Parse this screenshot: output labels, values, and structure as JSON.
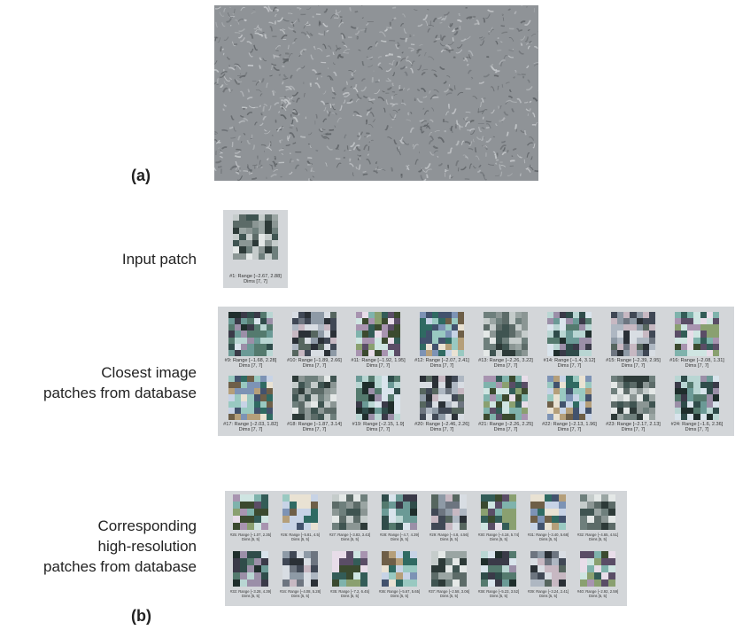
{
  "figure": {
    "label_a": "(a)",
    "label_b": "(b)",
    "input_label": "Input patch",
    "closest_label_line1": "Closest image",
    "closest_label_line2": "patches from database",
    "hr_label_line1": "Corresponding",
    "hr_label_line2": "high-resolution",
    "hr_label_line3": "patches from database",
    "input_patch": {
      "range": "#1: Range [−2.67, 2.88]",
      "dims": "Dims [7, 7]"
    },
    "closest_patches": [
      {
        "range": "#9: Range [−1.68, 2.28]",
        "dims": "Dims [7, 7]"
      },
      {
        "range": "#10: Range [−1.89, 2.66]",
        "dims": "Dims [7, 7]"
      },
      {
        "range": "#11: Range [−1.92, 1.95]",
        "dims": "Dims [7, 7]"
      },
      {
        "range": "#12: Range [−2.07, 2.41]",
        "dims": "Dims [7, 7]"
      },
      {
        "range": "#13: Range [−2.26, 3.22]",
        "dims": "Dims [7, 7]"
      },
      {
        "range": "#14: Range [−1.4, 3.12]",
        "dims": "Dims [7, 7]"
      },
      {
        "range": "#15: Range [−2.39, 2.95]",
        "dims": "Dims [7, 7]"
      },
      {
        "range": "#16: Range [−2.08, 1.31]",
        "dims": "Dims [7, 7]"
      },
      {
        "range": "#17: Range [−2.03, 1.82]",
        "dims": "Dims [7, 7]"
      },
      {
        "range": "#18: Range [−1.87, 3.14]",
        "dims": "Dims [7, 7]"
      },
      {
        "range": "#19: Range [−2.15, 1.9]",
        "dims": "Dims [7, 7]"
      },
      {
        "range": "#20: Range [−2.46, 2.26]",
        "dims": "Dims [7, 7]"
      },
      {
        "range": "#21: Range [−2.26, 2.25]",
        "dims": "Dims [7, 7]"
      },
      {
        "range": "#22: Range [−2.13, 1.96]",
        "dims": "Dims [7, 7]"
      },
      {
        "range": "#23: Range [−2.17, 2.13]",
        "dims": "Dims [7, 7]"
      },
      {
        "range": "#24: Range [−1.6, 2.36]",
        "dims": "Dims [7, 7]"
      }
    ],
    "hr_patches": [
      {
        "range": "#25: Range [−1.07, 2.35]",
        "dims": "Dims [5, 5]"
      },
      {
        "range": "#26: Range [−5.81, 4.5]",
        "dims": "Dims [5, 5]"
      },
      {
        "range": "#27: Range [−3.83, 3.43]",
        "dims": "Dims [5, 5]"
      },
      {
        "range": "#28: Range [−4.7, 4.39]",
        "dims": "Dims [5, 5]"
      },
      {
        "range": "#29: Range [−4.8, 4.56]",
        "dims": "Dims [5, 5]"
      },
      {
        "range": "#30: Range [−4.18, 5.74]",
        "dims": "Dims [5, 5]"
      },
      {
        "range": "#31: Range [−3.40, 5.68]",
        "dims": "Dims [5, 5]"
      },
      {
        "range": "#32: Range [−4.65, 4.51]",
        "dims": "Dims [5, 5]"
      },
      {
        "range": "#33: Range [−3.28, 4.39]",
        "dims": "Dims [5, 5]"
      },
      {
        "range": "#34: Range [−4.08, 5.28]",
        "dims": "Dims [5, 5]"
      },
      {
        "range": "#35: Range [−7.2, 6.45]",
        "dims": "Dims [5, 5]"
      },
      {
        "range": "#36: Range [−5.67, 5.65]",
        "dims": "Dims [5, 5]"
      },
      {
        "range": "#37: Range [−2.58, 3.06]",
        "dims": "Dims [5, 5]"
      },
      {
        "range": "#38: Range [−5.23, 3.52]",
        "dims": "Dims [5, 5]"
      },
      {
        "range": "#39: Range [−3.24, 2.41]",
        "dims": "Dims [5, 5]"
      },
      {
        "range": "#40: Range [−2.92, 2.59]",
        "dims": "Dims [5, 5]"
      }
    ]
  }
}
